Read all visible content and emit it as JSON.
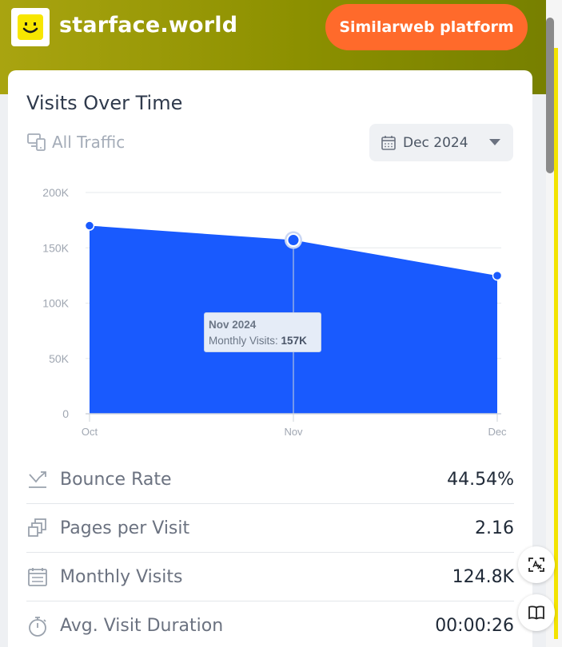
{
  "header": {
    "site_name": "starface.world",
    "platform_button": "Similarweb platform"
  },
  "card": {
    "title": "Visits Over Time",
    "traffic_filter": "All Traffic",
    "date_select": "Dec 2024"
  },
  "chart_data": {
    "type": "area",
    "x": [
      "Oct",
      "Nov",
      "Dec"
    ],
    "series": [
      {
        "values": [
          170000,
          157000,
          124800
        ]
      }
    ],
    "y_ticks": [
      "200K",
      "150K",
      "100K",
      "50K",
      "0"
    ],
    "ylim": [
      0,
      200000
    ],
    "grid": true,
    "color": "#195afe",
    "highlighted_index": 1,
    "tooltip": {
      "title": "Nov 2024",
      "label": "Monthly Visits:",
      "value": "157K"
    }
  },
  "metrics": [
    {
      "label": "Bounce Rate",
      "value": "44.54%",
      "icon": "bounce-rate-icon"
    },
    {
      "label": "Pages per Visit",
      "value": "2.16",
      "icon": "pages-icon"
    },
    {
      "label": "Monthly Visits",
      "value": "124.8K",
      "icon": "calendar-icon"
    },
    {
      "label": "Avg. Visit Duration",
      "value": "00:00:26",
      "icon": "stopwatch-icon"
    }
  ],
  "colors": {
    "accent": "#ff6a2b",
    "chart_fill": "#195afe",
    "header_band": "#8c9000"
  }
}
